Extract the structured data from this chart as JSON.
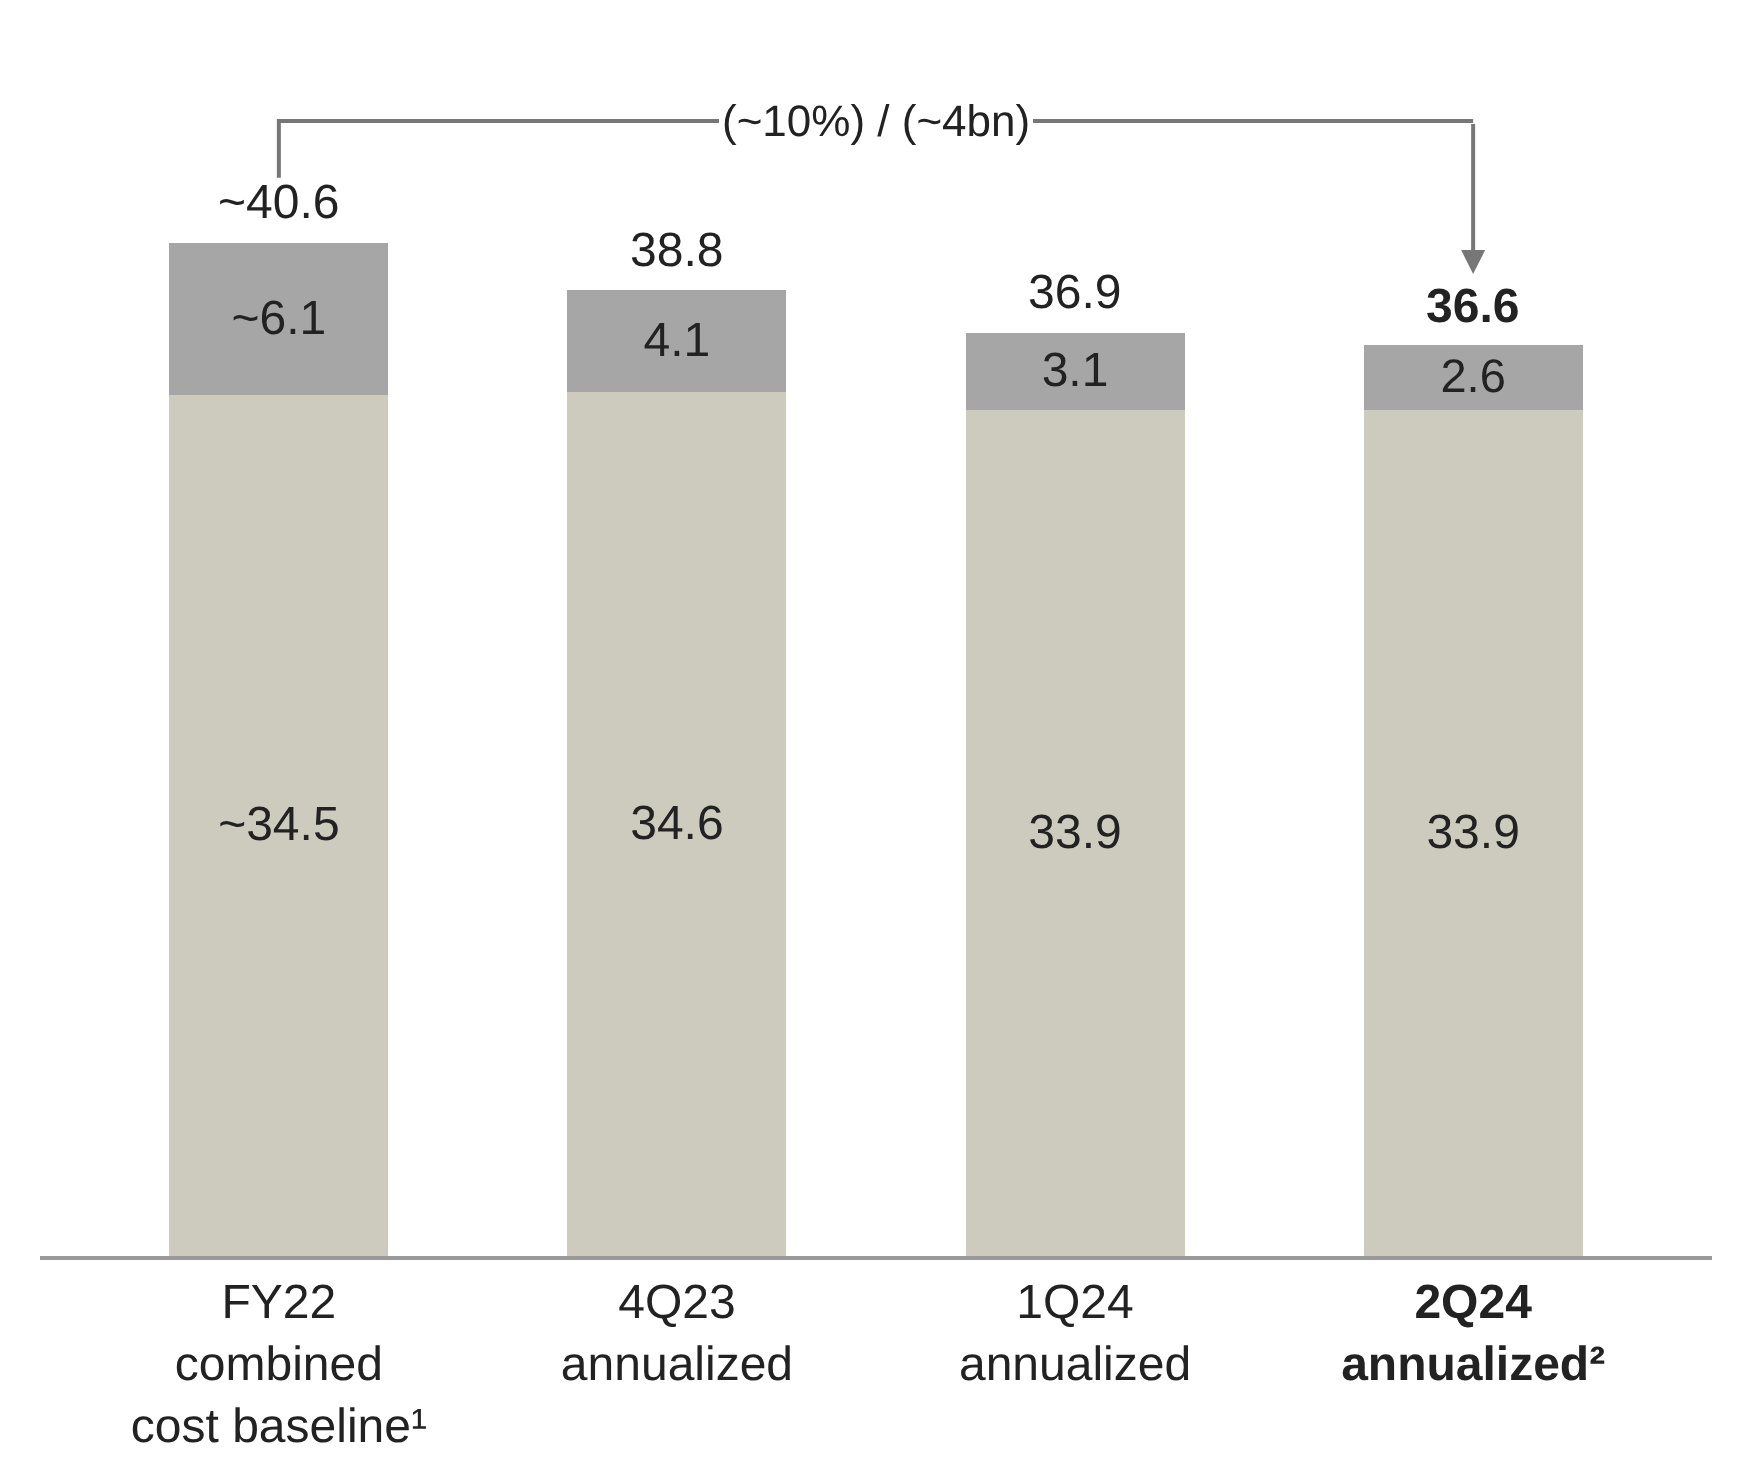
{
  "chart_data": {
    "type": "bar",
    "stacked": true,
    "categories": [
      "FY22\ncombined\ncost baseline¹",
      "4Q23\nannualized",
      "1Q24\nannualized",
      "2Q24\nannualized²"
    ],
    "series": [
      {
        "color": "#cdcbbd",
        "values": [
          34.5,
          34.6,
          33.9,
          33.9
        ],
        "value_labels": [
          "~34.5",
          "34.6",
          "33.9",
          "33.9"
        ]
      },
      {
        "color": "#a6a6a6",
        "values": [
          6.1,
          4.1,
          3.1,
          2.6
        ],
        "value_labels": [
          "~6.1",
          "4.1",
          "3.1",
          "2.6"
        ]
      }
    ],
    "totals": [
      "~40.6",
      "38.8",
      "36.9",
      "36.6"
    ],
    "annotations": [
      "(~10%) / (~4bn)"
    ]
  }
}
